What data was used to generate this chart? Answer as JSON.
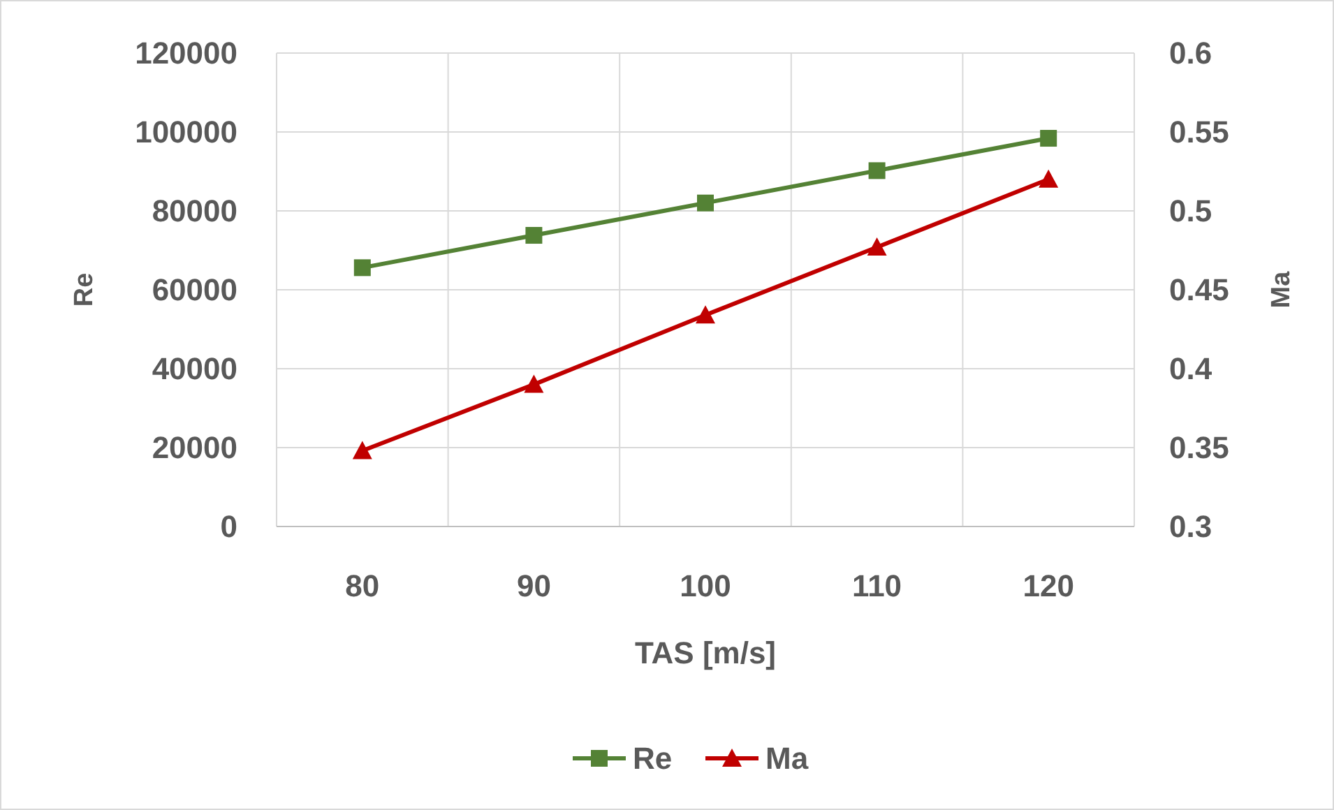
{
  "chart_data": {
    "type": "line",
    "xlabel": "TAS [m/s]",
    "ylabel": "Re",
    "y2label": "Ma",
    "categories": [
      "80",
      "90",
      "100",
      "110",
      "120"
    ],
    "series": [
      {
        "name": "Re",
        "color": "#548235",
        "marker": "square",
        "values": [
          65600,
          73800,
          82000,
          90200,
          98400
        ]
      },
      {
        "name": "Ma",
        "color": "#c00000",
        "marker": "triangle",
        "axis": "y2",
        "values": [
          0.348,
          0.39,
          0.434,
          0.477,
          0.52
        ]
      }
    ],
    "ylim": [
      0,
      120000
    ],
    "yticks": [
      0,
      20000,
      40000,
      60000,
      80000,
      100000,
      120000
    ],
    "y2lim": [
      0.3,
      0.6
    ],
    "y2ticks": [
      0.3,
      0.35,
      0.4,
      0.45,
      0.5,
      0.55,
      0.6
    ],
    "grid": true,
    "legend": "bottom",
    "line_style": "solid"
  }
}
